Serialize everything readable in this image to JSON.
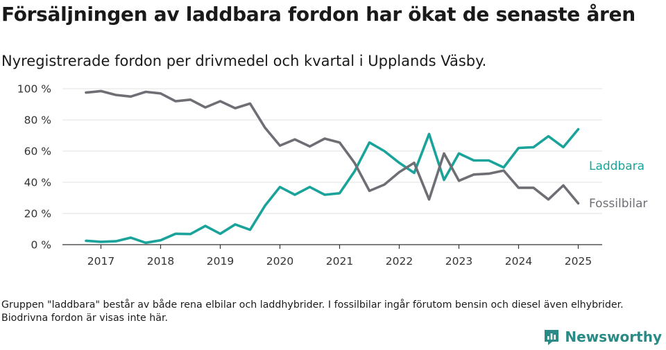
{
  "title": "Försäljningen av laddbara fordon har ökat de senaste åren",
  "subtitle": "Nyregistrerade fordon per drivmedel och kvartal i Upplands Väsby.",
  "footnote": "Gruppen \"laddbara\" består av både rena elbilar och laddhybrider. I fossilbilar ingår förutom bensin och diesel även elhybrider. Biodrivna fordon är visas inte här.",
  "brand": {
    "name": "Newsworthy",
    "color": "#2a8a85"
  },
  "chart_data": {
    "type": "line",
    "x_unit": "quarter",
    "x": [
      "2017 Q1",
      "2017 Q2",
      "2017 Q3",
      "2017 Q4",
      "2018 Q1",
      "2018 Q2",
      "2018 Q3",
      "2018 Q4",
      "2019 Q1",
      "2019 Q2",
      "2019 Q3",
      "2019 Q4",
      "2020 Q1",
      "2020 Q2",
      "2020 Q3",
      "2020 Q4",
      "2021 Q1",
      "2021 Q2",
      "2021 Q3",
      "2021 Q4",
      "2022 Q1",
      "2022 Q2",
      "2022 Q3",
      "2022 Q4",
      "2023 Q1",
      "2023 Q2",
      "2023 Q3",
      "2023 Q4",
      "2024 Q1",
      "2024 Q2",
      "2024 Q3",
      "2024 Q4",
      "2025 Q1",
      "2025 Q2"
    ],
    "series": [
      {
        "name": "Laddbara",
        "color": "#1aa39a",
        "values": [
          2.5,
          1.8,
          2.2,
          4.5,
          1.2,
          2.8,
          7,
          6.8,
          12,
          7,
          13,
          9.5,
          25,
          37,
          32,
          37,
          32,
          33,
          47,
          65.5,
          60,
          52.5,
          46,
          71,
          41.5,
          58.5,
          54,
          54,
          49.5,
          62,
          62.5,
          69.5,
          62.5,
          74
        ]
      },
      {
        "name": "Fossilbilar",
        "color": "#6e6e75",
        "values": [
          97.5,
          98.5,
          96,
          95,
          98,
          97,
          92,
          93,
          88,
          92,
          87.5,
          90.5,
          75,
          63.5,
          67.5,
          63,
          68,
          65.5,
          52.5,
          34.5,
          38.5,
          46.5,
          52.5,
          29,
          58.5,
          41,
          45,
          45.5,
          47.5,
          36.5,
          36.5,
          29,
          38,
          26.5
        ]
      }
    ],
    "ylim": [
      0,
      100
    ],
    "y_ticks": [
      {
        "value": 0,
        "label": "0 %"
      },
      {
        "value": 20,
        "label": "20 %"
      },
      {
        "value": 40,
        "label": "40 %"
      },
      {
        "value": 60,
        "label": "60 %"
      },
      {
        "value": 80,
        "label": "80 %"
      },
      {
        "value": 100,
        "label": "100 %"
      }
    ],
    "x_ticks": [
      {
        "at": "2017 Q2",
        "label": "2017"
      },
      {
        "at": "2018 Q2",
        "label": "2018"
      },
      {
        "at": "2019 Q2",
        "label": "2019"
      },
      {
        "at": "2020 Q2",
        "label": "2020"
      },
      {
        "at": "2021 Q2",
        "label": "2021"
      },
      {
        "at": "2022 Q2",
        "label": "2022"
      },
      {
        "at": "2023 Q2",
        "label": "2023"
      },
      {
        "at": "2024 Q2",
        "label": "2024"
      },
      {
        "at": "2025 Q2",
        "label": "2025"
      }
    ],
    "grid": true,
    "legend": "direct labels at right"
  }
}
